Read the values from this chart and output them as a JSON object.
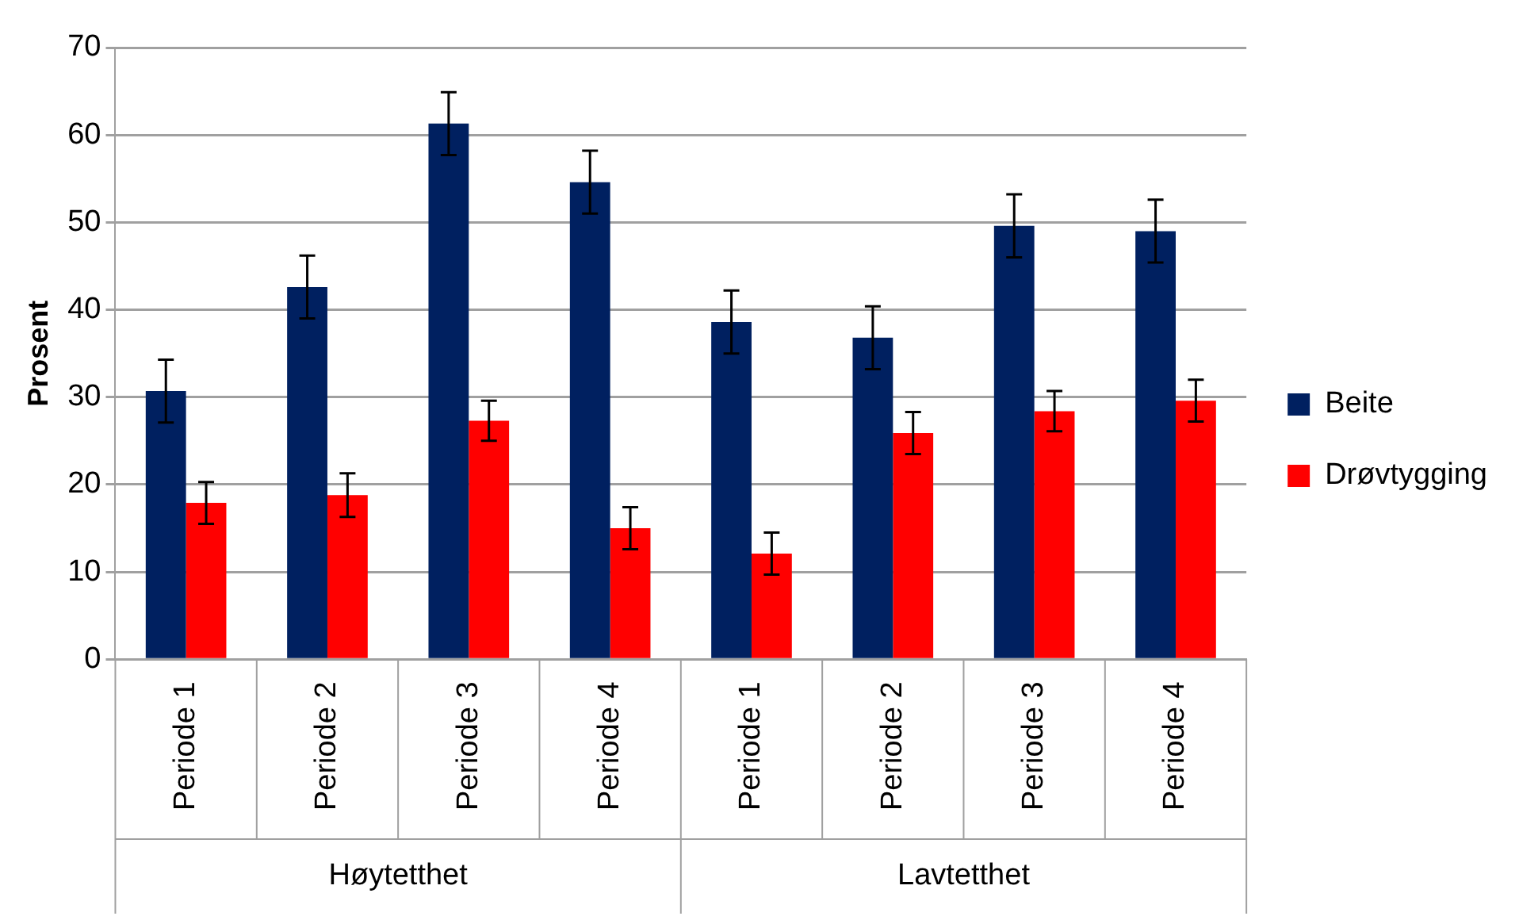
{
  "chart_data": {
    "type": "bar",
    "ylabel": "Prosent",
    "categories": [
      "Periode 1",
      "Periode 2",
      "Periode 3",
      "Periode 4",
      "Periode 1",
      "Periode 2",
      "Periode 3",
      "Periode 4"
    ],
    "series": [
      {
        "name": "Beite",
        "color": "#002060",
        "values": [
          30.7,
          42.6,
          61.3,
          54.6,
          38.6,
          36.8,
          49.6,
          49.0
        ],
        "errors": [
          3.6,
          3.6,
          3.6,
          3.6,
          3.6,
          3.6,
          3.6,
          3.6
        ]
      },
      {
        "name": "Drøvtygging",
        "color": "#ff0000",
        "values": [
          17.9,
          18.8,
          27.3,
          15.0,
          12.1,
          25.9,
          28.4,
          29.6
        ],
        "errors": [
          2.4,
          2.5,
          2.3,
          2.4,
          2.4,
          2.4,
          2.3,
          2.4
        ]
      }
    ],
    "annotations": [
      "Høytetthet",
      "Lavtetthet"
    ],
    "ylim": [
      0,
      70
    ],
    "yticks": [
      0,
      10,
      20,
      30,
      40,
      50,
      60,
      70
    ],
    "grid": "y",
    "legend": "right"
  }
}
